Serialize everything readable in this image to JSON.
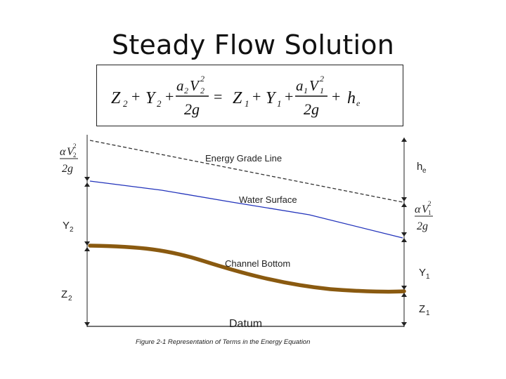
{
  "slide": {
    "title": "Steady Flow Solution"
  },
  "equation": {
    "text": "Z2 + Y2 + a2V2^2/2g = Z1 + Y1 + a1V1^2/2g + he"
  },
  "diagram": {
    "energy_grade_line": "Energy Grade Line",
    "water_surface": "Water Surface",
    "channel_bottom": "Channel Bottom",
    "datum": "Datum",
    "left": {
      "z": "Z",
      "z_sub": "2",
      "y": "Y",
      "y_sub": "2"
    },
    "right": {
      "he": "h",
      "he_sub": "e",
      "y": "Y",
      "y_sub": "1",
      "z": "Z",
      "z_sub": "1"
    },
    "caption": "Figure 2-1 Representation of Terms in the Energy Equation",
    "colors": {
      "water_surface": "#2233bb",
      "channel_bottom": "#8a5a10",
      "energy_line": "#333333"
    }
  }
}
